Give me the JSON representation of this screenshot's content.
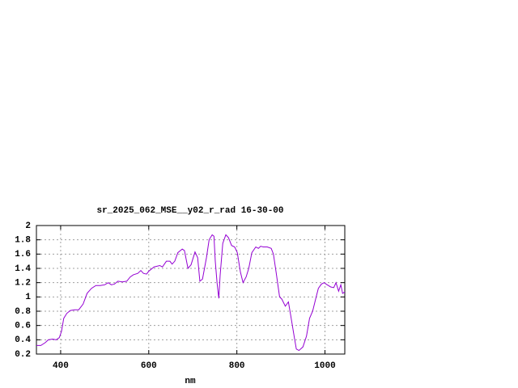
{
  "chart_data": {
    "type": "line",
    "title": "sr_2025_062_MSE__y02_r_rad 16-30-00",
    "x_label": "nm",
    "xlim": [
      345,
      1045
    ],
    "xticks": [
      400,
      600,
      800,
      1000
    ],
    "ylim": [
      0.2,
      2
    ],
    "yticks": [
      0.2,
      0.4,
      0.6,
      0.8,
      1,
      1.2,
      1.4,
      1.6,
      1.8,
      2
    ],
    "grid": true,
    "series": [
      {
        "name": "sr_2025_062_MSE__y02_r_rad",
        "color": "#9400d3",
        "x": [
          345,
          355,
          365,
          372,
          382,
          390,
          397,
          402,
          407,
          414,
          422,
          432,
          441,
          451,
          460,
          470,
          480,
          490,
          500,
          508,
          515,
          522,
          530,
          540,
          550,
          558,
          565,
          575,
          582,
          588,
          595,
          600,
          612,
          625,
          631,
          640,
          648,
          653,
          659,
          666,
          676,
          681,
          689,
          696,
          705,
          711,
          716,
          722,
          731,
          737,
          744,
          748,
          751,
          755,
          759,
          762,
          768,
          775,
          781,
          788,
          795,
          801,
          808,
          814,
          821,
          827,
          834,
          843,
          849,
          854,
          860,
          869,
          878,
          883,
          889,
          897,
          902,
          910,
          917,
          922,
          930,
          935,
          941,
          950,
          958,
          965,
          972,
          980,
          985,
          992,
          998,
          1005,
          1013,
          1020,
          1025,
          1031,
          1036,
          1040,
          1045
        ],
        "values": [
          0.32,
          0.32,
          0.36,
          0.4,
          0.41,
          0.4,
          0.43,
          0.52,
          0.7,
          0.77,
          0.81,
          0.82,
          0.82,
          0.9,
          1.05,
          1.12,
          1.16,
          1.16,
          1.17,
          1.2,
          1.17,
          1.18,
          1.22,
          1.21,
          1.22,
          1.28,
          1.31,
          1.33,
          1.37,
          1.33,
          1.32,
          1.36,
          1.42,
          1.44,
          1.42,
          1.5,
          1.5,
          1.46,
          1.5,
          1.62,
          1.67,
          1.65,
          1.4,
          1.45,
          1.63,
          1.55,
          1.22,
          1.25,
          1.55,
          1.8,
          1.87,
          1.85,
          1.5,
          1.2,
          0.98,
          1.3,
          1.75,
          1.87,
          1.83,
          1.72,
          1.7,
          1.62,
          1.35,
          1.2,
          1.28,
          1.4,
          1.62,
          1.7,
          1.68,
          1.71,
          1.7,
          1.7,
          1.68,
          1.6,
          1.35,
          1.0,
          0.97,
          0.87,
          0.93,
          0.75,
          0.45,
          0.27,
          0.25,
          0.3,
          0.45,
          0.7,
          0.8,
          1.0,
          1.12,
          1.18,
          1.2,
          1.17,
          1.14,
          1.13,
          1.2,
          1.08,
          1.17,
          1.05,
          1.07
        ]
      }
    ]
  }
}
